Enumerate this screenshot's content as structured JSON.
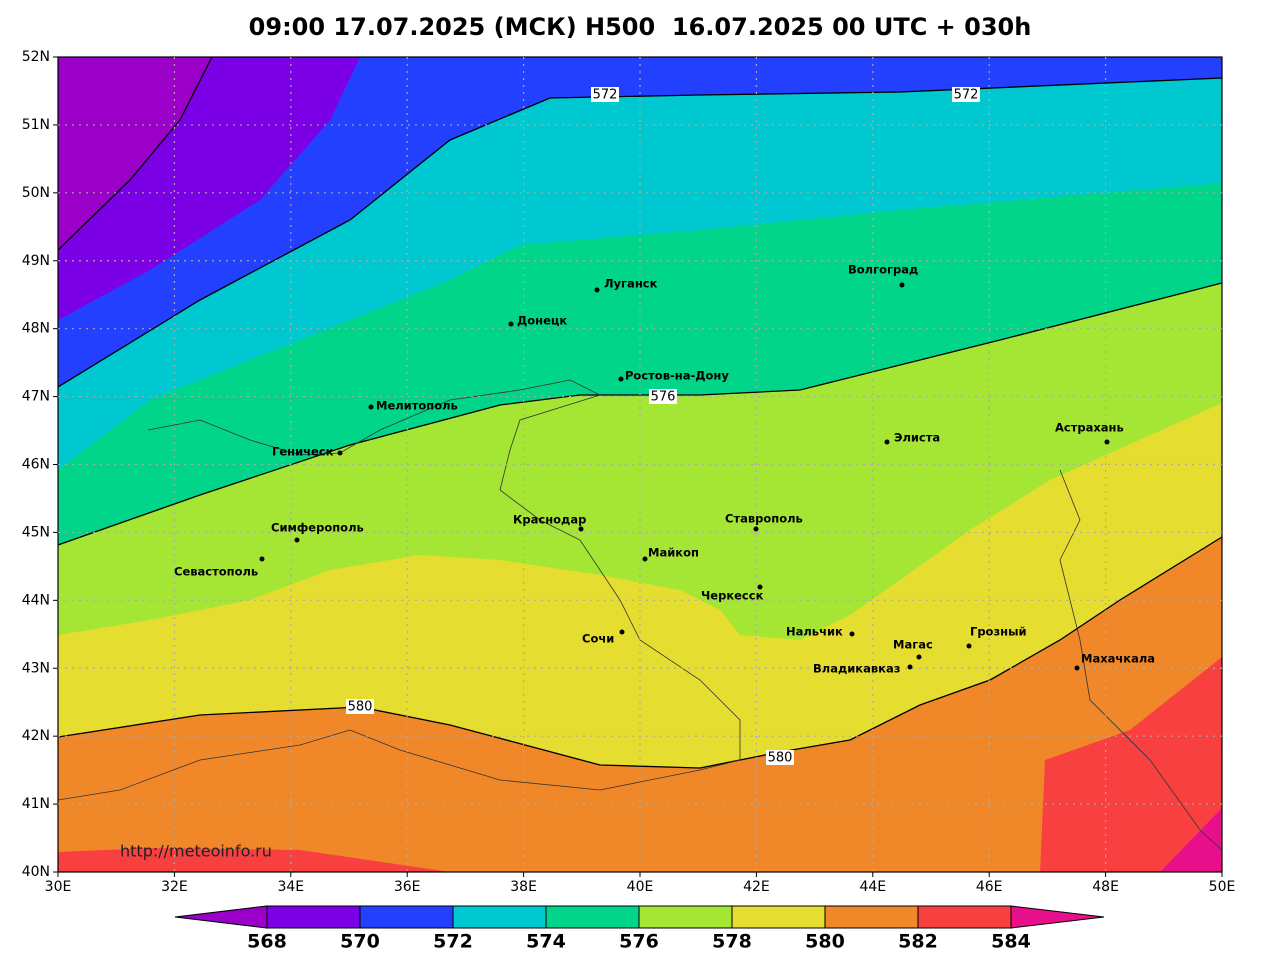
{
  "title": "09:00 17.07.2025 (МСК) H500  16.07.2025 00 UTC + 030h",
  "lat_ticks": [
    "52N",
    "51N",
    "50N",
    "49N",
    "48N",
    "47N",
    "46N",
    "45N",
    "44N",
    "43N",
    "42N",
    "41N",
    "40N"
  ],
  "lon_ticks": [
    "30E",
    "32E",
    "34E",
    "36E",
    "38E",
    "40E",
    "42E",
    "44E",
    "46E",
    "48E",
    "50E"
  ],
  "contour_labels": [
    "572",
    "572",
    "576",
    "580",
    "580"
  ],
  "cities": [
    "Луганск",
    "Донецк",
    "Волгоград",
    "Ростов-на-Дону",
    "Мелитополь",
    "Геническ",
    "Элиста",
    "Астрахань",
    "Симферополь",
    "Севастополь",
    "Краснодар",
    "Ставрополь",
    "Майкоп",
    "Черкесск",
    "Нальчик",
    "Сочи",
    "Магас",
    "Грозный",
    "Владикавказ",
    "Махачкала"
  ],
  "watermark": "http://meteoinfo.ru",
  "colorbar": {
    "labels": [
      568,
      570,
      572,
      574,
      576,
      578,
      580,
      582,
      584
    ],
    "colors": [
      "#9b00c8",
      "#7c00e6",
      "#2440ff",
      "#00c8d0",
      "#00d58a",
      "#a5e635",
      "#e5dd30",
      "#f0882a",
      "#f84040",
      "#e8108a"
    ]
  }
}
